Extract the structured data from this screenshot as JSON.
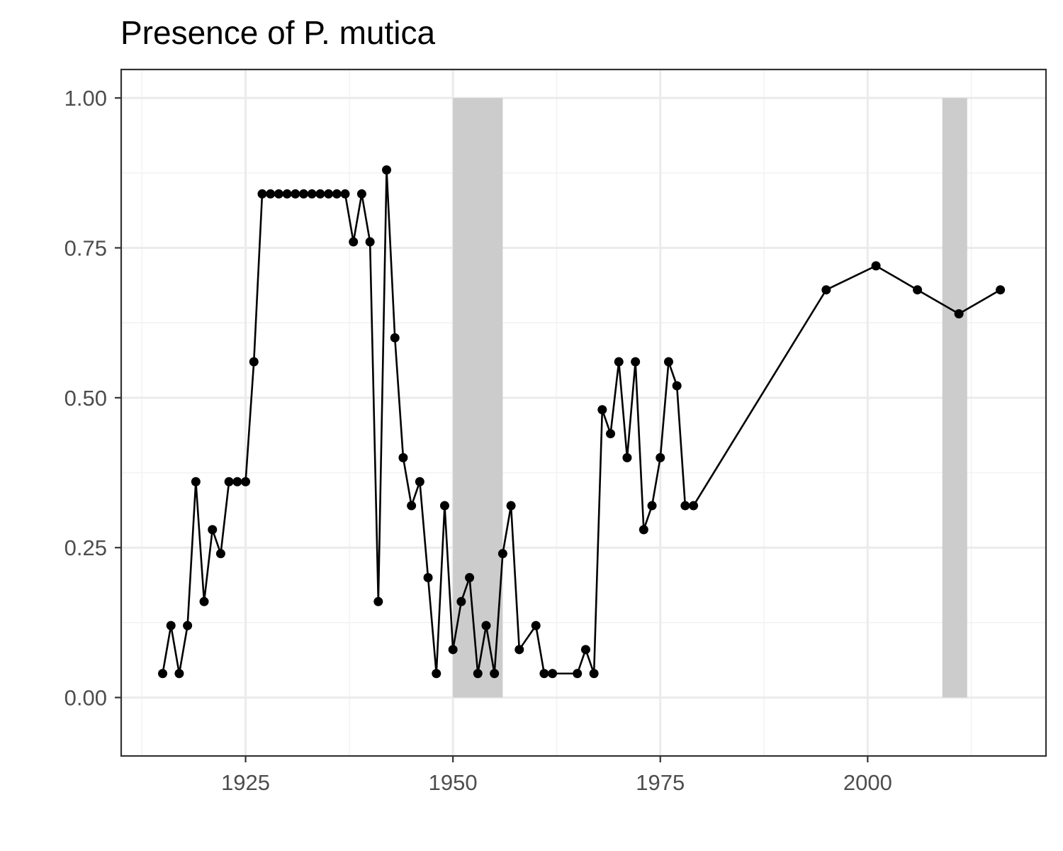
{
  "chart_data": {
    "type": "line",
    "title": "Presence of P. mutica",
    "xlabel": "",
    "ylabel": "",
    "xlim": [
      1910,
      2021.5
    ],
    "ylim": [
      -0.0975,
      1.0475
    ],
    "x_ticks": [
      1925,
      1950,
      1975,
      2000
    ],
    "x_tick_labels": [
      "1925",
      "1950",
      "1975",
      "2000"
    ],
    "y_ticks": [
      0,
      0.25,
      0.5,
      0.75,
      1.0
    ],
    "y_tick_labels": [
      "0.00",
      "0.25",
      "0.50",
      "0.75",
      "1.00"
    ],
    "grid": true,
    "legend": "none",
    "shaded_ranges": [
      {
        "x_start": 1950,
        "x_end": 1956,
        "y_start": 0,
        "y_end": 1.0
      },
      {
        "x_start": 2009,
        "x_end": 2012,
        "y_start": 0,
        "y_end": 1.0
      }
    ],
    "series": [
      {
        "x": [
          1915,
          1916,
          1917,
          1918,
          1919,
          1920,
          1921,
          1922,
          1923,
          1924,
          1925,
          1926,
          1927,
          1928,
          1929,
          1930,
          1931,
          1932,
          1933,
          1934,
          1935,
          1936,
          1937,
          1938,
          1939,
          1940,
          1941,
          1942,
          1943,
          1944,
          1945,
          1946,
          1947,
          1948,
          1949,
          1950,
          1951,
          1952,
          1953,
          1954,
          1955,
          1956,
          1957,
          1958,
          1960,
          1961,
          1962,
          1965,
          1966,
          1967,
          1968,
          1969,
          1970,
          1971,
          1972,
          1973,
          1974,
          1975,
          1976,
          1977,
          1978,
          1979,
          1995,
          2001,
          2006,
          2011,
          2016
        ],
        "values": [
          0.04,
          0.12,
          0.04,
          0.12,
          0.36,
          0.16,
          0.28,
          0.24,
          0.36,
          0.36,
          0.36,
          0.56,
          0.84,
          0.84,
          0.84,
          0.84,
          0.84,
          0.84,
          0.84,
          0.84,
          0.84,
          0.84,
          0.84,
          0.76,
          0.84,
          0.76,
          0.16,
          0.88,
          0.6,
          0.4,
          0.32,
          0.36,
          0.2,
          0.04,
          0.32,
          0.08,
          0.16,
          0.2,
          0.04,
          0.12,
          0.04,
          0.24,
          0.32,
          0.08,
          0.12,
          0.04,
          0.04,
          0.04,
          0.08,
          0.04,
          0.48,
          0.44,
          0.56,
          0.4,
          0.56,
          0.28,
          0.32,
          0.4,
          0.56,
          0.52,
          0.32,
          0.32,
          0.68,
          0.72,
          0.68,
          0.64,
          0.68
        ]
      }
    ],
    "colors": {
      "line": "#000000",
      "point": "#000000",
      "shade": "#cccccc",
      "grid_major": "#ebebeb",
      "grid_minor": "#f4f4f4",
      "panel_border": "#333333",
      "tick": "#333333"
    }
  }
}
